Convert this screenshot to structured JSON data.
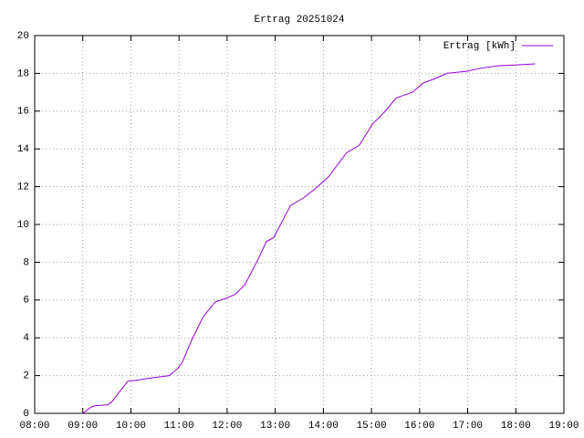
{
  "chart_data": {
    "type": "line",
    "title": "Ertrag 20251024",
    "x": [
      "09:00",
      "09:11",
      "09:15",
      "09:31",
      "09:36",
      "09:56",
      "10:07",
      "10:21",
      "10:39",
      "10:48",
      "10:59",
      "11:04",
      "11:16",
      "11:30",
      "11:45",
      "11:59",
      "12:10",
      "12:22",
      "12:38",
      "12:49",
      "12:58",
      "13:19",
      "13:35",
      "13:50",
      "14:06",
      "14:29",
      "14:45",
      "15:01",
      "15:15",
      "15:31",
      "15:51",
      "16:05",
      "16:18",
      "16:34",
      "16:57",
      "17:20",
      "17:38",
      "18:01",
      "18:24"
    ],
    "series": [
      {
        "name": "Ertrag [kWh]",
        "color": "#9400d3",
        "values": [
          0,
          0.35,
          0.4,
          0.45,
          0.6,
          1.7,
          1.75,
          1.85,
          1.95,
          2.0,
          2.4,
          2.7,
          3.9,
          5.1,
          5.9,
          6.1,
          6.3,
          6.8,
          8.1,
          9.1,
          9.3,
          11.0,
          11.4,
          11.9,
          12.5,
          13.8,
          14.2,
          15.3,
          15.9,
          16.7,
          17.0,
          17.5,
          17.7,
          18.0,
          18.1,
          18.3,
          18.4,
          18.45,
          18.5
        ]
      }
    ],
    "xlim": [
      "08:00",
      "19:00"
    ],
    "xticks": [
      "08:00",
      "09:00",
      "10:00",
      "11:00",
      "12:00",
      "13:00",
      "14:00",
      "15:00",
      "16:00",
      "17:00",
      "18:00",
      "19:00"
    ],
    "ylim": [
      0,
      20
    ],
    "yticks": [
      0,
      2,
      4,
      6,
      8,
      10,
      12,
      14,
      16,
      18,
      20
    ],
    "grid": true,
    "legend": "top-right"
  }
}
